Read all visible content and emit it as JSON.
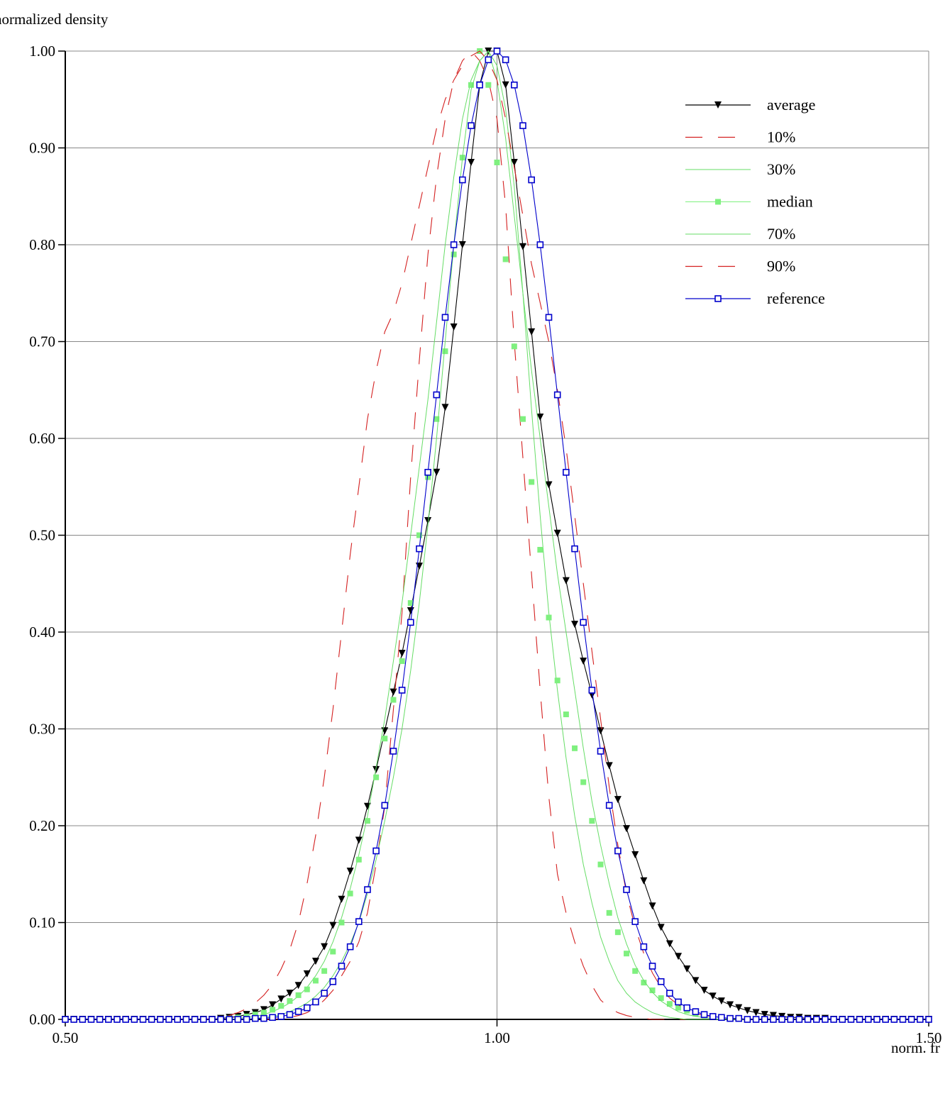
{
  "chart_data": {
    "type": "line",
    "xlabel": "norm. fr",
    "ylabel": "normalized density",
    "xlim": [
      0.5,
      1.5
    ],
    "ylim": [
      0.0,
      1.0
    ],
    "x_ticks": [
      "0.50",
      "1.00",
      "1.50"
    ],
    "y_ticks": [
      "0.00",
      "0.10",
      "0.20",
      "0.30",
      "0.40",
      "0.50",
      "0.60",
      "0.70",
      "0.80",
      "0.90",
      "1.00"
    ],
    "grid": true,
    "legend_position": "top-right",
    "colors": {
      "average": "#000000",
      "percentile_10_90": "#d42020",
      "percentile_30_70": "#66dd66",
      "median": "#7ff07f",
      "reference": "#0000cc",
      "grid": "#888888"
    },
    "x": [
      0.5,
      0.51,
      0.52,
      0.53,
      0.54,
      0.55,
      0.56,
      0.57,
      0.58,
      0.59,
      0.6,
      0.61,
      0.62,
      0.63,
      0.64,
      0.65,
      0.66,
      0.67,
      0.68,
      0.69,
      0.7,
      0.71,
      0.72,
      0.73,
      0.74,
      0.75,
      0.76,
      0.77,
      0.78,
      0.79,
      0.8,
      0.81,
      0.82,
      0.83,
      0.84,
      0.85,
      0.86,
      0.87,
      0.88,
      0.89,
      0.9,
      0.91,
      0.92,
      0.93,
      0.94,
      0.95,
      0.96,
      0.97,
      0.98,
      0.99,
      1.0,
      1.01,
      1.02,
      1.03,
      1.04,
      1.05,
      1.06,
      1.07,
      1.08,
      1.09,
      1.1,
      1.11,
      1.12,
      1.13,
      1.14,
      1.15,
      1.16,
      1.17,
      1.18,
      1.19,
      1.2,
      1.21,
      1.22,
      1.23,
      1.24,
      1.25,
      1.26,
      1.27,
      1.28,
      1.29,
      1.3,
      1.31,
      1.32,
      1.33,
      1.34,
      1.35,
      1.36,
      1.37,
      1.38,
      1.39,
      1.4,
      1.41,
      1.42,
      1.43,
      1.44,
      1.45,
      1.46,
      1.47,
      1.48,
      1.49,
      1.5
    ],
    "series": [
      {
        "name": "average",
        "style": "solid",
        "marker": "filled-triangle-down",
        "values": [
          0,
          0,
          0,
          0,
          0,
          0,
          0,
          0,
          0,
          0,
          0,
          0,
          0,
          0,
          0,
          0,
          0,
          0,
          0.001,
          0.002,
          0.003,
          0.005,
          0.007,
          0.01,
          0.015,
          0.021,
          0.027,
          0.035,
          0.047,
          0.06,
          0.075,
          0.097,
          0.124,
          0.153,
          0.185,
          0.22,
          0.258,
          0.298,
          0.338,
          0.378,
          0.422,
          0.468,
          0.515,
          0.565,
          0.632,
          0.715,
          0.8,
          0.885,
          0.965,
          1.0,
          1.0,
          0.965,
          0.885,
          0.798,
          0.71,
          0.622,
          0.552,
          0.502,
          0.453,
          0.408,
          0.37,
          0.335,
          0.298,
          0.262,
          0.227,
          0.197,
          0.17,
          0.143,
          0.117,
          0.095,
          0.078,
          0.065,
          0.052,
          0.04,
          0.03,
          0.024,
          0.019,
          0.015,
          0.012,
          0.009,
          0.007,
          0.005,
          0.004,
          0.003,
          0.002,
          0.002,
          0.001,
          0.001,
          0.001,
          0,
          0,
          0,
          0,
          0,
          0,
          0,
          0,
          0,
          0,
          0,
          0
        ]
      },
      {
        "name": "10%",
        "style": "dashed",
        "marker": "none",
        "values": [
          0,
          0,
          0,
          0,
          0,
          0,
          0,
          0,
          0,
          0,
          0,
          0,
          0,
          0,
          0,
          0,
          0,
          0,
          0,
          0,
          0,
          0,
          0,
          0,
          0,
          0.001,
          0.002,
          0.004,
          0.007,
          0.012,
          0.02,
          0.03,
          0.045,
          0.06,
          0.08,
          0.11,
          0.16,
          0.22,
          0.32,
          0.42,
          0.56,
          0.68,
          0.79,
          0.87,
          0.93,
          0.97,
          0.99,
          1.0,
          0.99,
          0.97,
          0.93,
          0.84,
          0.7,
          0.58,
          0.46,
          0.34,
          0.23,
          0.15,
          0.11,
          0.08,
          0.055,
          0.035,
          0.02,
          0.012,
          0.007,
          0.004,
          0.002,
          0.001,
          0,
          0,
          0,
          0,
          0,
          0,
          0,
          0,
          0,
          0,
          0,
          0,
          0,
          0,
          0,
          0,
          0,
          0,
          0,
          0,
          0,
          0,
          0,
          0,
          0,
          0,
          0,
          0,
          0,
          0,
          0,
          0,
          0
        ]
      },
      {
        "name": "30%",
        "style": "solid-thin",
        "marker": "none",
        "values": [
          0,
          0,
          0,
          0,
          0,
          0,
          0,
          0,
          0,
          0,
          0,
          0,
          0,
          0,
          0,
          0,
          0,
          0,
          0,
          0,
          0.001,
          0.002,
          0.003,
          0.005,
          0.008,
          0.012,
          0.017,
          0.024,
          0.033,
          0.045,
          0.06,
          0.08,
          0.105,
          0.135,
          0.17,
          0.21,
          0.26,
          0.31,
          0.37,
          0.43,
          0.5,
          0.57,
          0.64,
          0.72,
          0.8,
          0.87,
          0.93,
          0.97,
          0.99,
          1.0,
          0.985,
          0.94,
          0.86,
          0.75,
          0.63,
          0.52,
          0.42,
          0.34,
          0.27,
          0.21,
          0.16,
          0.12,
          0.085,
          0.06,
          0.04,
          0.027,
          0.018,
          0.012,
          0.007,
          0.004,
          0.002,
          0.001,
          0,
          0,
          0,
          0,
          0,
          0,
          0,
          0,
          0,
          0,
          0,
          0,
          0,
          0,
          0,
          0,
          0,
          0,
          0,
          0,
          0,
          0,
          0,
          0,
          0,
          0,
          0,
          0,
          0
        ]
      },
      {
        "name": "median",
        "style": "none",
        "marker": "filled-square",
        "values": [
          0,
          0,
          0,
          0,
          0,
          0,
          0,
          0,
          0,
          0,
          0,
          0,
          0,
          0,
          0,
          0,
          0,
          0,
          0,
          0.001,
          0.002,
          0.003,
          0.005,
          0.007,
          0.01,
          0.014,
          0.019,
          0.025,
          0.031,
          0.04,
          0.05,
          0.07,
          0.1,
          0.13,
          0.165,
          0.205,
          0.25,
          0.29,
          0.33,
          0.37,
          0.43,
          0.5,
          0.56,
          0.62,
          0.69,
          0.79,
          0.89,
          0.965,
          1.0,
          0.965,
          0.885,
          0.785,
          0.695,
          0.62,
          0.555,
          0.485,
          0.415,
          0.35,
          0.315,
          0.28,
          0.245,
          0.205,
          0.16,
          0.11,
          0.09,
          0.068,
          0.05,
          0.038,
          0.03,
          0.022,
          0.016,
          0.012,
          0.009,
          0.006,
          0.004,
          0.003,
          0.002,
          0.001,
          0.001,
          0,
          0,
          0,
          0,
          0,
          0,
          0,
          0,
          0,
          0,
          0,
          0,
          0,
          0,
          0,
          0,
          0,
          0,
          0,
          0,
          0,
          0
        ]
      },
      {
        "name": "70%",
        "style": "solid-thin",
        "marker": "none",
        "values": [
          0,
          0,
          0,
          0,
          0,
          0,
          0,
          0,
          0,
          0,
          0,
          0,
          0,
          0,
          0,
          0,
          0,
          0,
          0,
          0,
          0,
          0,
          0.001,
          0.002,
          0.003,
          0.005,
          0.008,
          0.012,
          0.017,
          0.024,
          0.033,
          0.045,
          0.06,
          0.078,
          0.1,
          0.13,
          0.165,
          0.205,
          0.25,
          0.3,
          0.36,
          0.43,
          0.51,
          0.6,
          0.7,
          0.8,
          0.89,
          0.96,
          0.99,
          1.0,
          0.97,
          0.91,
          0.83,
          0.75,
          0.67,
          0.6,
          0.53,
          0.46,
          0.4,
          0.34,
          0.28,
          0.225,
          0.18,
          0.14,
          0.105,
          0.078,
          0.056,
          0.04,
          0.028,
          0.019,
          0.013,
          0.008,
          0.005,
          0.003,
          0.002,
          0.001,
          0,
          0,
          0,
          0,
          0,
          0,
          0,
          0,
          0,
          0,
          0,
          0,
          0,
          0,
          0,
          0,
          0,
          0,
          0,
          0,
          0,
          0,
          0,
          0,
          0
        ]
      },
      {
        "name": "90%",
        "style": "dashed",
        "marker": "none",
        "values": [
          0,
          0,
          0,
          0,
          0,
          0,
          0,
          0,
          0,
          0,
          0,
          0,
          0,
          0,
          0,
          0,
          0,
          0.001,
          0.002,
          0.004,
          0.007,
          0.011,
          0.017,
          0.025,
          0.036,
          0.052,
          0.072,
          0.1,
          0.14,
          0.19,
          0.25,
          0.32,
          0.4,
          0.48,
          0.55,
          0.62,
          0.67,
          0.71,
          0.73,
          0.76,
          0.8,
          0.84,
          0.88,
          0.92,
          0.95,
          0.97,
          0.985,
          0.995,
          1.0,
          0.99,
          0.97,
          0.93,
          0.88,
          0.83,
          0.78,
          0.74,
          0.7,
          0.65,
          0.59,
          0.52,
          0.45,
          0.38,
          0.31,
          0.24,
          0.18,
          0.13,
          0.095,
          0.068,
          0.048,
          0.033,
          0.022,
          0.015,
          0.01,
          0.006,
          0.004,
          0.003,
          0.002,
          0.001,
          0.001,
          0,
          0,
          0,
          0,
          0,
          0,
          0,
          0,
          0,
          0,
          0,
          0,
          0,
          0,
          0,
          0,
          0,
          0,
          0,
          0,
          0,
          0
        ]
      },
      {
        "name": "reference",
        "style": "solid",
        "marker": "open-square",
        "values": [
          0,
          0,
          0,
          0,
          0,
          0,
          0,
          0,
          0,
          0,
          0,
          0,
          0,
          0,
          0,
          0,
          0,
          0,
          0,
          0,
          0,
          0,
          0.001,
          0.001,
          0.002,
          0.003,
          0.005,
          0.008,
          0.012,
          0.018,
          0.027,
          0.039,
          0.055,
          0.075,
          0.101,
          0.134,
          0.174,
          0.221,
          0.277,
          0.34,
          0.41,
          0.486,
          0.565,
          0.645,
          0.725,
          0.8,
          0.867,
          0.923,
          0.965,
          0.991,
          1.0,
          0.991,
          0.965,
          0.923,
          0.867,
          0.8,
          0.725,
          0.645,
          0.565,
          0.486,
          0.41,
          0.34,
          0.277,
          0.221,
          0.174,
          0.134,
          0.101,
          0.075,
          0.055,
          0.039,
          0.027,
          0.018,
          0.012,
          0.008,
          0.005,
          0.003,
          0.002,
          0.001,
          0.001,
          0,
          0,
          0,
          0,
          0,
          0,
          0,
          0,
          0,
          0,
          0,
          0,
          0,
          0,
          0,
          0,
          0,
          0,
          0,
          0,
          0,
          0
        ]
      }
    ]
  }
}
